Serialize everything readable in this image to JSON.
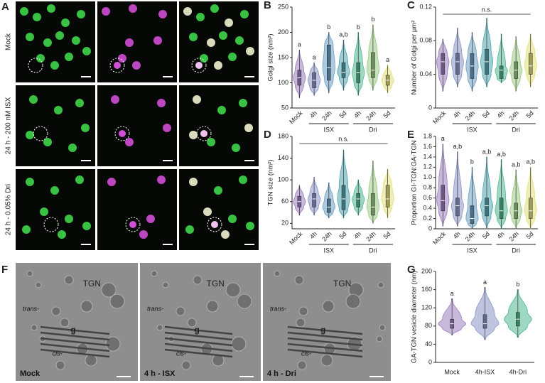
{
  "panel_a": {
    "label": "A",
    "rows": [
      "Mock",
      "24 h - 200 nM ISX",
      "24 h - 0.05% Dri"
    ]
  },
  "panel_f": {
    "label": "F",
    "images": [
      {
        "caption": "Mock",
        "trans": "trans-",
        "cis": "cis-",
        "tgn": "TGN",
        "g": "g"
      },
      {
        "caption": "4 h - ISX",
        "trans": "trans-",
        "cis": "cis-",
        "tgn": "TGN",
        "g": "g"
      },
      {
        "caption": "4 h - Dri",
        "trans": "trans-",
        "cis": "cis-",
        "tgn": "TGN",
        "g": "g"
      }
    ]
  },
  "chart_data": [
    {
      "type": "violin",
      "label": "B",
      "ylabel": "Golgi size (nm²)",
      "ylim": [
        50,
        250
      ],
      "yticks": [
        50,
        100,
        150,
        200,
        250
      ],
      "categories": [
        "Mock",
        "4h",
        "24h",
        "5d",
        "4h",
        "24h",
        "5d"
      ],
      "groups": [
        null,
        "ISX",
        "ISX",
        "ISX",
        "Dri",
        "Dri",
        "Dri"
      ],
      "colors": [
        "#9b7fc0",
        "#8a96c8",
        "#6a9fc4",
        "#4fa6b0",
        "#4fb88f",
        "#9acb84",
        "#e0e07a"
      ],
      "min": [
        70,
        75,
        80,
        85,
        75,
        85,
        80
      ],
      "q1": [
        95,
        90,
        105,
        110,
        100,
        110,
        95
      ],
      "median": [
        110,
        105,
        130,
        120,
        120,
        125,
        105
      ],
      "q3": [
        125,
        120,
        175,
        140,
        140,
        160,
        115
      ],
      "max": [
        165,
        140,
        200,
        185,
        200,
        215,
        135
      ],
      "letters": [
        "a",
        "a",
        "b",
        "a,b",
        "b",
        "b",
        "a"
      ]
    },
    {
      "type": "violin",
      "label": "C",
      "ylabel": "Number of Golgi per µm²",
      "ylim": [
        0,
        0.12
      ],
      "yticks": [
        0,
        0.04,
        0.08,
        0.12
      ],
      "annotation": "n.s.",
      "categories": [
        "Mock",
        "4h",
        "24h",
        "5d",
        "4h",
        "24h",
        "5d"
      ],
      "groups": [
        null,
        "ISX",
        "ISX",
        "ISX",
        "Dri",
        "Dri",
        "Dri"
      ],
      "colors": [
        "#9b7fc0",
        "#8a96c8",
        "#6a9fc4",
        "#4fa6b0",
        "#4fb88f",
        "#9acb84",
        "#e0e07a"
      ],
      "min": [
        0.02,
        0.025,
        0.02,
        0.025,
        0.03,
        0.02,
        0.025
      ],
      "q1": [
        0.04,
        0.04,
        0.035,
        0.04,
        0.035,
        0.035,
        0.04
      ],
      "median": [
        0.055,
        0.055,
        0.05,
        0.055,
        0.045,
        0.045,
        0.05
      ],
      "q3": [
        0.065,
        0.065,
        0.065,
        0.07,
        0.05,
        0.055,
        0.065
      ],
      "max": [
        0.082,
        0.095,
        0.09,
        0.107,
        0.088,
        0.085,
        0.088
      ]
    },
    {
      "type": "violin",
      "label": "D",
      "ylabel": "TGN size (nm²)",
      "ylim": [
        10,
        180
      ],
      "yticks": [
        20,
        60,
        100,
        140,
        180
      ],
      "annotation": "n.s.",
      "categories": [
        "Mock",
        "4h",
        "24h",
        "5d",
        "4h",
        "24h",
        "5d"
      ],
      "groups": [
        null,
        "ISX",
        "ISX",
        "ISX",
        "Dri",
        "Dri",
        "Dri"
      ],
      "colors": [
        "#9b7fc0",
        "#8a96c8",
        "#6a9fc4",
        "#4fa6b0",
        "#4fb88f",
        "#9acb84",
        "#e0e07a"
      ],
      "min": [
        35,
        35,
        30,
        30,
        35,
        20,
        30
      ],
      "q1": [
        50,
        50,
        40,
        45,
        50,
        35,
        50
      ],
      "median": [
        60,
        65,
        50,
        65,
        65,
        50,
        65
      ],
      "q3": [
        70,
        75,
        65,
        90,
        75,
        75,
        90
      ],
      "max": [
        90,
        105,
        95,
        155,
        100,
        135,
        120
      ]
    },
    {
      "type": "violin",
      "label": "E",
      "ylabel": "Proportion GI-TGN:GA-TGN",
      "ylim": [
        0,
        1.8
      ],
      "yticks": [
        0,
        0.2,
        0.4,
        0.6,
        0.8,
        {
          "value": 1,
          "label": "1.0"
        },
        1.2,
        1.4,
        1.6,
        1.8
      ],
      "categories": [
        "Mock",
        "4h",
        "24h",
        "5d",
        "4h",
        "24h",
        "5d"
      ],
      "groups": [
        null,
        "ISX",
        "ISX",
        "ISX",
        "Dri",
        "Dri",
        "Dri"
      ],
      "colors": [
        "#9b7fc0",
        "#8a96c8",
        "#6a9fc4",
        "#4fa6b0",
        "#4fb88f",
        "#9acb84",
        "#e0e07a"
      ],
      "min": [
        0.05,
        0.05,
        0,
        0,
        0,
        0,
        0
      ],
      "q1": [
        0.35,
        0.25,
        0.1,
        0.25,
        0.2,
        0.2,
        0.2
      ],
      "median": [
        0.55,
        0.45,
        0.2,
        0.45,
        0.35,
        0.35,
        0.35
      ],
      "q3": [
        0.85,
        0.6,
        0.45,
        0.6,
        0.6,
        0.5,
        0.6
      ],
      "max": [
        1.65,
        1.5,
        1.2,
        1.4,
        1.35,
        1.15,
        1.2
      ],
      "letters": [
        "a",
        "a,b",
        "b",
        "a,b",
        "a,b",
        "a,b",
        "a,b"
      ]
    },
    {
      "type": "violin",
      "label": "G",
      "ylabel": "GA-TGN vesicle diameter (nm)",
      "ylim": [
        0,
        200
      ],
      "yticks": [
        0,
        40,
        80,
        120,
        160,
        200
      ],
      "categories": [
        "Mock",
        "4h-ISX",
        "4h-Dri"
      ],
      "colors": [
        "#9b7fc0",
        "#8a96c8",
        "#4fb88f"
      ],
      "min": [
        60,
        50,
        55
      ],
      "q1": [
        75,
        75,
        80
      ],
      "median": [
        85,
        85,
        95
      ],
      "q3": [
        95,
        105,
        110
      ],
      "max": [
        140,
        165,
        160
      ],
      "letters": [
        "a",
        "a",
        "b"
      ]
    }
  ]
}
